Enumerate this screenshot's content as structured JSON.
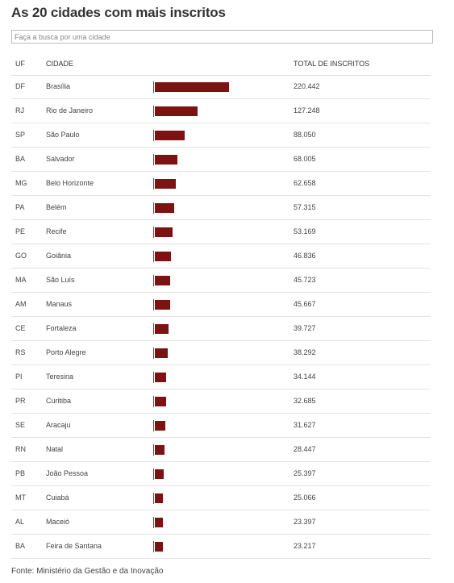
{
  "title": "As 20 cidades com mais inscritos",
  "search": {
    "placeholder": "Faça a busca por uma cidade",
    "value": ""
  },
  "columns": {
    "uf": "UF",
    "city": "CIDADE",
    "total": "TOTAL DE INSCRITOS"
  },
  "source": "Fonte: Ministério da Gestão e da Inovação",
  "colors": {
    "bar": "#7d1212"
  },
  "chart_data": {
    "type": "bar",
    "title": "As 20 cidades com mais inscritos",
    "categories": [
      "Brasília",
      "Rio de Janeiro",
      "São Paulo",
      "Salvador",
      "Belo Horizonte",
      "Belém",
      "Recife",
      "Goiânia",
      "São Luís",
      "Manaus",
      "Fortaleza",
      "Porto Alegre",
      "Teresina",
      "Curitiba",
      "Aracaju",
      "Natal",
      "João Pessoa",
      "Cuiabá",
      "Maceió",
      "Feira de Santana"
    ],
    "uf": [
      "DF",
      "RJ",
      "SP",
      "BA",
      "MG",
      "PA",
      "PE",
      "GO",
      "MA",
      "AM",
      "CE",
      "RS",
      "PI",
      "PR",
      "SE",
      "RN",
      "PB",
      "MT",
      "AL",
      "BA"
    ],
    "values": [
      220442,
      127248,
      88050,
      68005,
      62658,
      57315,
      53169,
      46836,
      45723,
      45667,
      39727,
      38292,
      34144,
      32685,
      31627,
      28447,
      25397,
      25066,
      23397,
      23217
    ],
    "value_labels": [
      "220.442",
      "127.248",
      "88.050",
      "68.005",
      "62.658",
      "57.315",
      "53.169",
      "46.836",
      "45.723",
      "45.667",
      "39.727",
      "38.292",
      "34.144",
      "32.685",
      "31.627",
      "28.447",
      "25.397",
      "25.066",
      "23.397",
      "23.217"
    ],
    "xlabel": "",
    "ylabel": ""
  }
}
